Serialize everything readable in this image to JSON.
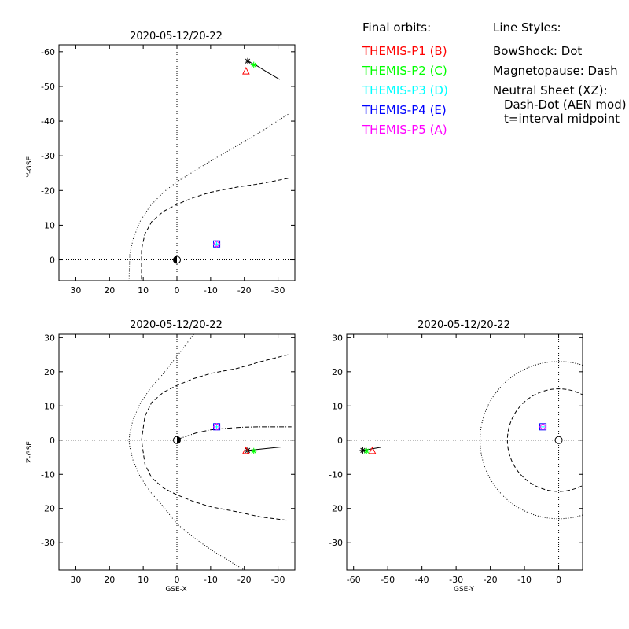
{
  "legend": {
    "final_orbits_title": "Final orbits:",
    "probes": [
      {
        "label": "THEMIS-P1 (B)",
        "color": "#ff0000"
      },
      {
        "label": "THEMIS-P2 (C)",
        "color": "#00ff00"
      },
      {
        "label": "THEMIS-P3 (D)",
        "color": "#00ffff"
      },
      {
        "label": "THEMIS-P4 (E)",
        "color": "#0000ff"
      },
      {
        "label": "THEMIS-P5 (A)",
        "color": "#ff00ff"
      }
    ],
    "line_styles_title": "Line Styles:",
    "line_styles": [
      "BowShock: Dot",
      "Magnetopause: Dash",
      "Neutral Sheet (XZ):",
      "Dash-Dot (AEN mod)",
      "t=interval midpoint"
    ]
  },
  "chart_data": [
    {
      "type": "scatter",
      "title": "2020-05-12/20-22",
      "xlabel": "",
      "ylabel": "Y-GSE",
      "xlim": [
        35,
        -35
      ],
      "ylim": [
        6,
        -62
      ],
      "xticks": [
        30,
        20,
        10,
        0,
        -10,
        -20,
        -30
      ],
      "yticks": [
        0,
        -10,
        -20,
        -30,
        -40,
        -50,
        -60
      ],
      "series": [
        {
          "name": "THEMIS-P1 (B)",
          "color": "#ff0000",
          "marker": "triangle",
          "x": -20.5,
          "y": -54.5
        },
        {
          "name": "THEMIS-P2 (C)",
          "color": "#00ff00",
          "marker": "asterisk",
          "x": -22.8,
          "y": -56.2
        },
        {
          "name": "THEMIS-P3 (D)",
          "color": "#00ffff",
          "marker": "plus",
          "x": -11.8,
          "y": -4.6
        },
        {
          "name": "THEMIS-P4 (E)",
          "color": "#0000ff",
          "marker": "square",
          "x": -11.8,
          "y": -4.6
        },
        {
          "name": "THEMIS-P5 (A)",
          "color": "#ff00ff",
          "marker": "diamond",
          "x": -11.8,
          "y": -4.6
        }
      ],
      "orbit_track": {
        "x": [
          -21.0,
          -24.0,
          -27.0,
          -30.5
        ],
        "y": [
          -57.3,
          -55.8,
          -54.0,
          -52.0
        ]
      },
      "orbit_start": {
        "x": -21.0,
        "y": -57.3
      },
      "bow_shock": {
        "x": [
          -33.0,
          -25.0,
          -18.0,
          -10.0,
          -5.0,
          0.0,
          4.0,
          8.0,
          11.0,
          13.0,
          14.0,
          14.2
        ],
        "y": [
          -42.0,
          -37.0,
          -33.0,
          -28.5,
          -25.5,
          -22.5,
          -19.5,
          -15.5,
          -11.0,
          -6.0,
          -1.5,
          6.0
        ]
      },
      "magnetopause": {
        "x": [
          -33.0,
          -25.0,
          -18.0,
          -10.0,
          -5.0,
          0.0,
          4.0,
          7.5,
          9.5,
          10.5,
          10.5
        ],
        "y": [
          -23.5,
          -22.0,
          -21.0,
          -19.5,
          -18.0,
          -16.0,
          -14.0,
          -11.0,
          -7.5,
          -3.0,
          6.0
        ]
      }
    },
    {
      "type": "scatter",
      "title": "2020-05-12/20-22",
      "xlabel": "GSE-X",
      "ylabel": "Z-GSE",
      "xlim": [
        35,
        -35
      ],
      "ylim": [
        -38,
        31
      ],
      "xticks": [
        30,
        20,
        10,
        0,
        -10,
        -20,
        -30
      ],
      "yticks": [
        30,
        20,
        10,
        0,
        -10,
        -20,
        -30
      ],
      "series": [
        {
          "name": "THEMIS-P1 (B)",
          "color": "#ff0000",
          "marker": "triangle",
          "x": -20.5,
          "y": -3.0
        },
        {
          "name": "THEMIS-P2 (C)",
          "color": "#00ff00",
          "marker": "asterisk",
          "x": -22.8,
          "y": -3.2
        },
        {
          "name": "THEMIS-P3 (D)",
          "color": "#00ffff",
          "marker": "plus",
          "x": -11.8,
          "y": 3.9
        },
        {
          "name": "THEMIS-P4 (E)",
          "color": "#0000ff",
          "marker": "square",
          "x": -11.8,
          "y": 3.9
        },
        {
          "name": "THEMIS-P5 (A)",
          "color": "#ff00ff",
          "marker": "diamond",
          "x": -11.8,
          "y": 3.9
        }
      ],
      "orbit_track": {
        "x": [
          -21.0,
          -25.0,
          -31.0
        ],
        "y": [
          -3.0,
          -2.6,
          -2.0
        ]
      },
      "orbit_start": {
        "x": -21.0,
        "y": -3.0
      },
      "bow_shock": {
        "x": [
          -5.0,
          0.0,
          4.0,
          8.0,
          11.0,
          13.0,
          14.0,
          14.2,
          14.0,
          13.0,
          11.0,
          8.0,
          4.0,
          0.0,
          -5.0,
          -10.0,
          -15.0,
          -20.0
        ],
        "y": [
          31.0,
          24.5,
          19.5,
          15.0,
          10.5,
          6.0,
          2.0,
          0.0,
          -2.0,
          -6.0,
          -10.5,
          -15.0,
          -19.5,
          -24.5,
          -28.5,
          -32.0,
          -35.0,
          -38.0
        ]
      },
      "magnetopause": {
        "x": [
          -33.0,
          -25.0,
          -18.0,
          -10.0,
          -5.0,
          0.0,
          4.0,
          7.5,
          9.5,
          10.5,
          9.5,
          7.5,
          4.0,
          0.0,
          -5.0,
          -10.0,
          -18.0,
          -25.0,
          -33.0
        ],
        "y": [
          25.0,
          23.0,
          21.0,
          19.5,
          18.0,
          16.0,
          14.0,
          11.0,
          7.0,
          0.0,
          -7.0,
          -11.0,
          -14.0,
          -16.0,
          -18.0,
          -19.5,
          -21.0,
          -22.5,
          -23.5
        ]
      },
      "neutral_sheet": {
        "x": [
          0.0,
          -3.0,
          -6.0,
          -10.0,
          -15.0,
          -20.0,
          -25.0,
          -30.0,
          -34.0
        ],
        "y": [
          0.2,
          1.2,
          2.2,
          3.0,
          3.5,
          3.8,
          3.9,
          3.9,
          3.9
        ]
      }
    },
    {
      "type": "scatter",
      "title": "2020-05-12/20-22",
      "xlabel": "GSE-Y",
      "ylabel": "",
      "xlim": [
        -62,
        7
      ],
      "ylim": [
        -38,
        31
      ],
      "xticks": [
        -60,
        -50,
        -40,
        -30,
        -20,
        -10,
        0
      ],
      "yticks": [
        30,
        20,
        10,
        0,
        -10,
        -20,
        -30
      ],
      "series": [
        {
          "name": "THEMIS-P1 (B)",
          "color": "#ff0000",
          "marker": "triangle",
          "x": -54.5,
          "y": -3.0
        },
        {
          "name": "THEMIS-P2 (C)",
          "color": "#00ff00",
          "marker": "asterisk",
          "x": -56.2,
          "y": -3.2
        },
        {
          "name": "THEMIS-P3 (D)",
          "color": "#00ffff",
          "marker": "plus",
          "x": -4.6,
          "y": 3.9
        },
        {
          "name": "THEMIS-P4 (E)",
          "color": "#0000ff",
          "marker": "square",
          "x": -4.6,
          "y": 3.9
        },
        {
          "name": "THEMIS-P5 (A)",
          "color": "#ff00ff",
          "marker": "diamond",
          "x": -4.6,
          "y": 3.9
        }
      ],
      "orbit_track": {
        "x": [
          -57.3,
          -55.0,
          -52.0
        ],
        "y": [
          -3.0,
          -2.6,
          -2.1
        ]
      },
      "orbit_start": {
        "x": -57.3,
        "y": -3.0
      },
      "bow_shock_radius": 23,
      "magnetopause_radius": 15
    }
  ]
}
